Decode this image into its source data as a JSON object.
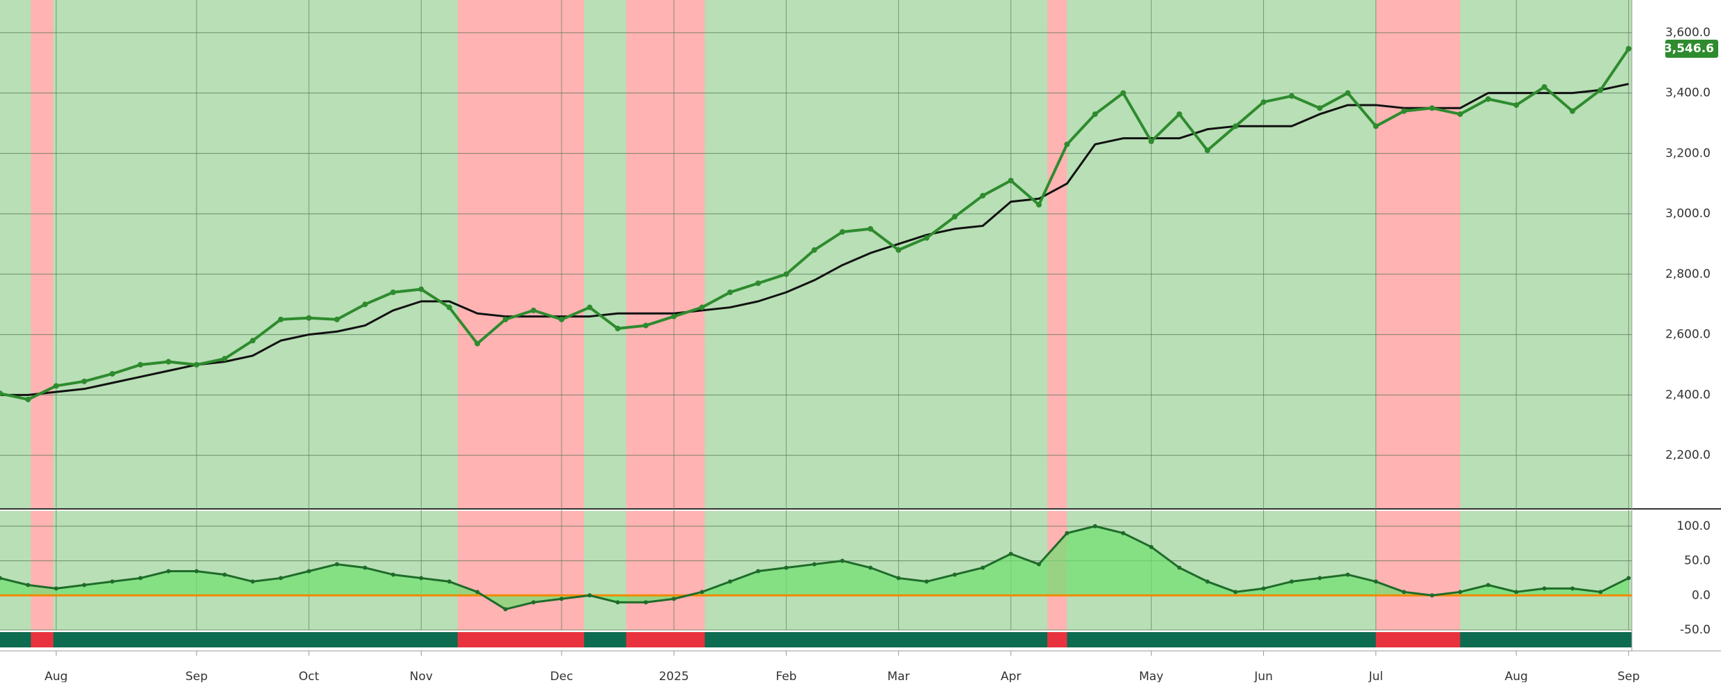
{
  "chart_data": [
    {
      "type": "line",
      "categories": [
        null,
        null,
        "Aug",
        null,
        null,
        null,
        null,
        "Sep",
        null,
        null,
        null,
        "Oct",
        null,
        null,
        null,
        "Nov",
        null,
        null,
        null,
        null,
        "Dec",
        null,
        null,
        null,
        "2025",
        null,
        null,
        null,
        "Feb",
        null,
        null,
        null,
        "Mar",
        null,
        null,
        null,
        "Apr",
        null,
        null,
        null,
        null,
        "May",
        null,
        null,
        null,
        "Jun",
        null,
        null,
        null,
        "Jul",
        null,
        null,
        null,
        null,
        "Aug",
        null,
        null,
        null,
        "Sep"
      ],
      "series": [
        {
          "color": "#2e8b2e",
          "values": [
            2405,
            2385,
            2430,
            2445,
            2470,
            2500,
            2510,
            2500,
            2520,
            2580,
            2650,
            2655,
            2650,
            2700,
            2740,
            2750,
            2690,
            2570,
            2650,
            2680,
            2650,
            2690,
            2620,
            2630,
            2660,
            2690,
            2740,
            2770,
            2800,
            2880,
            2940,
            2950,
            2880,
            2920,
            2990,
            3060,
            3110,
            3030,
            3230,
            3330,
            3400,
            3240,
            3330,
            3210,
            3290,
            3370,
            3390,
            3350,
            3400,
            3290,
            3340,
            3350,
            3330,
            3380,
            3360,
            3420,
            3340,
            3410,
            3546.6
          ]
        },
        {
          "color": "#111111",
          "values": [
            2400,
            2400,
            2410,
            2420,
            2440,
            2460,
            2480,
            2500,
            2510,
            2530,
            2580,
            2600,
            2610,
            2630,
            2680,
            2710,
            2710,
            2670,
            2660,
            2660,
            2660,
            2660,
            2670,
            2670,
            2670,
            2680,
            2690,
            2710,
            2740,
            2780,
            2830,
            2870,
            2900,
            2930,
            2950,
            2960,
            3040,
            3050,
            3100,
            3230,
            3250,
            3250,
            3250,
            3280,
            3290,
            3290,
            3290,
            3330,
            3360,
            3360,
            3350,
            3350,
            3350,
            3400,
            3400,
            3400,
            3400,
            3410,
            3430
          ]
        }
      ],
      "price_label": {
        "value": 3546.6,
        "label": "3,546.6"
      },
      "shaded_ranges": [
        [
          1.1,
          1.9
        ],
        [
          16.3,
          20.8
        ],
        [
          22.3,
          25.1
        ],
        [
          37.3,
          38
        ],
        [
          49,
          52
        ]
      ],
      "ylim": [
        2025,
        3708
      ],
      "yticks": [
        {
          "value": 2200,
          "label": "2,200.0"
        },
        {
          "value": 2400,
          "label": "2,400.0"
        },
        {
          "value": 2600,
          "label": "2,600.0"
        },
        {
          "value": 2800,
          "label": "2,800.0"
        },
        {
          "value": 3000,
          "label": "3,000.0"
        },
        {
          "value": 3200,
          "label": "3,200.0"
        },
        {
          "value": 3400,
          "label": "3,400.0"
        },
        {
          "value": 3600,
          "label": "3,600.0"
        }
      ],
      "grid": true
    },
    {
      "type": "area",
      "series": [
        {
          "color": "#1f6b2a",
          "values": [
            25,
            15,
            10,
            15,
            20,
            25,
            35,
            35,
            30,
            20,
            25,
            35,
            45,
            40,
            30,
            25,
            20,
            5,
            -20,
            -10,
            -5,
            0,
            -10,
            -10,
            -5,
            5,
            20,
            35,
            40,
            45,
            50,
            40,
            25,
            20,
            30,
            40,
            60,
            45,
            90,
            100,
            90,
            70,
            40,
            20,
            5,
            10,
            20,
            25,
            30,
            20,
            5,
            0,
            5,
            15,
            5,
            10,
            10,
            5,
            25
          ]
        }
      ],
      "ylim": [
        -50,
        122
      ],
      "yticks": [
        {
          "value": 100,
          "label": "100.0"
        },
        {
          "value": 50,
          "label": "50.0"
        },
        {
          "value": 0,
          "label": "0.0"
        },
        {
          "value": -50,
          "label": "-50.0"
        }
      ],
      "grid": true
    }
  ]
}
